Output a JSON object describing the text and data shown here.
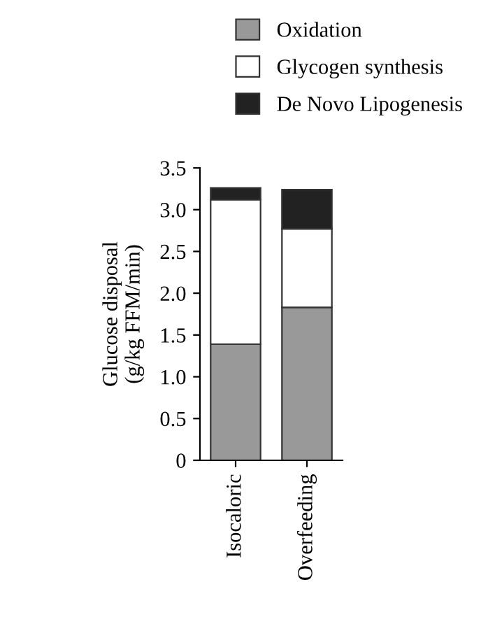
{
  "chart_data": {
    "type": "bar",
    "stacked": true,
    "ylabel": "Glucose disposal\n(g/kg FFM/min)",
    "categories": [
      "Isocaloric",
      "Overfeeding"
    ],
    "series": [
      {
        "name": "Oxidation",
        "color": "#999999",
        "values": [
          1.39,
          1.83
        ]
      },
      {
        "name": "Glycogen synthesis",
        "color": "#ffffff",
        "values": [
          1.73,
          0.94
        ]
      },
      {
        "name": "De Novo Lipogenesis",
        "color": "#222222",
        "values": [
          0.14,
          0.47
        ]
      }
    ],
    "ylim": [
      0,
      3.5
    ],
    "yticks": [
      0,
      {
        "value": 0.5,
        "label": "0.5"
      },
      {
        "value": 1.0,
        "label": "1.0"
      },
      {
        "value": 1.5,
        "label": "1.5"
      },
      {
        "value": 2.0,
        "label": "2.0"
      },
      {
        "value": 2.5,
        "label": "2.5"
      },
      {
        "value": 3.0,
        "label": "3.0"
      },
      {
        "value": 3.5,
        "label": "3.5"
      }
    ],
    "grid": false,
    "legend": "top"
  }
}
